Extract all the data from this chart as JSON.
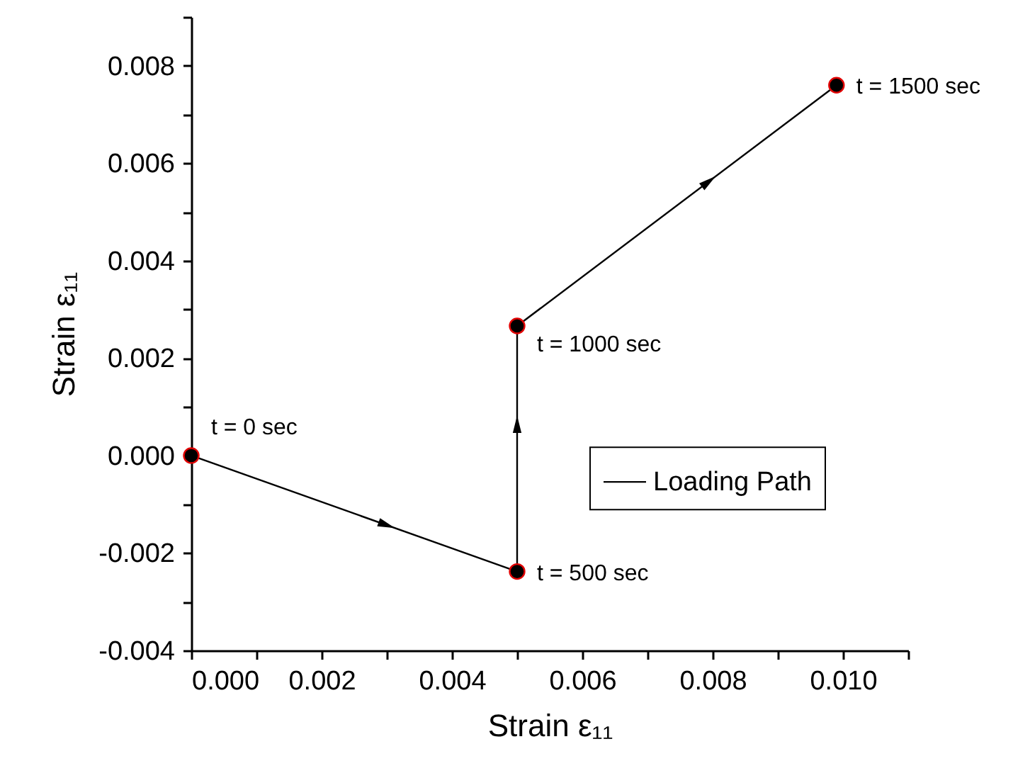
{
  "chart_data": {
    "type": "line",
    "xlabel": "Strain ε₁₁",
    "ylabel": "Strain ε₁₁",
    "x": [
      0,
      0.005,
      0.005,
      0.0099
    ],
    "series": [
      {
        "name": "Loading Path",
        "color": "#000000",
        "values": [
          0,
          -0.00238,
          0.00266,
          0.0076
        ]
      }
    ],
    "marker": "circle",
    "legend": "right",
    "grid": false,
    "xlim": [
      0,
      0.011
    ],
    "xticks": [
      {
        "value": 0,
        "label": "0.000"
      },
      {
        "value": 0.001,
        "label": null
      },
      {
        "value": 0.002,
        "label": "0.002"
      },
      {
        "value": 0.003,
        "label": null
      },
      {
        "value": 0.004,
        "label": "0.004"
      },
      {
        "value": 0.005,
        "label": null
      },
      {
        "value": 0.006,
        "label": "0.006"
      },
      {
        "value": 0.007,
        "label": null
      },
      {
        "value": 0.008,
        "label": "0.008"
      },
      {
        "value": 0.009,
        "label": null
      },
      {
        "value": 0.01,
        "label": "0.010"
      },
      {
        "value": 0.011,
        "label": null
      }
    ],
    "ylim": [
      -0.004,
      0.009
    ],
    "yticks": [
      {
        "value": -0.004,
        "label": "-0.004"
      },
      {
        "value": -0.003,
        "label": null
      },
      {
        "value": -0.002,
        "label": "-0.002"
      },
      {
        "value": -0.001,
        "label": null
      },
      {
        "value": 0,
        "label": "0.000"
      },
      {
        "value": 0.001,
        "label": null
      },
      {
        "value": 0.002,
        "label": "0.002"
      },
      {
        "value": 0.003,
        "label": null
      },
      {
        "value": 0.004,
        "label": "0.004"
      },
      {
        "value": 0.005,
        "label": null
      },
      {
        "value": 0.006,
        "label": "0.006"
      },
      {
        "value": 0.007,
        "label": null
      },
      {
        "value": 0.008,
        "label": "0.008"
      },
      {
        "value": 0.009,
        "label": null
      }
    ],
    "annotations": [
      {
        "text": "t = 0 sec",
        "x": 0,
        "y": 0
      },
      {
        "text": "t = 500 sec",
        "x": 0.005,
        "y": -0.00238
      },
      {
        "text": "t = 1000 sec",
        "x": 0.005,
        "y": 0.00266
      },
      {
        "text": "t = 1500 sec",
        "x": 0.0099,
        "y": 0.0076
      }
    ]
  }
}
